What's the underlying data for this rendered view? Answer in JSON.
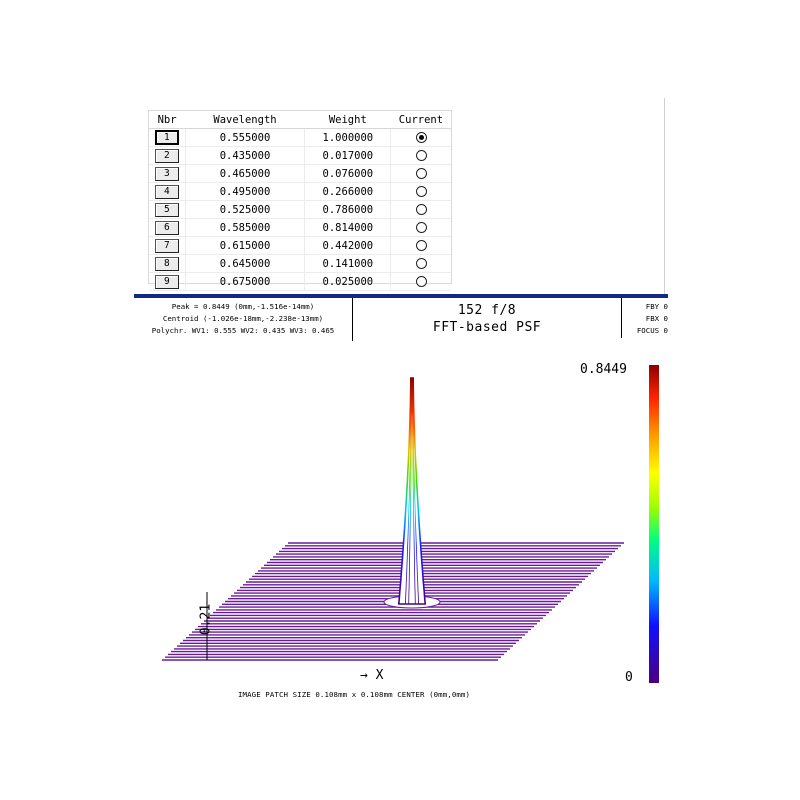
{
  "wavelength_table": {
    "headers": {
      "nbr": "Nbr",
      "wavelength": "Wavelength",
      "weight": "Weight",
      "current": "Current"
    },
    "rows": [
      {
        "nbr": "1",
        "wavelength": "0.555000",
        "weight": "1.000000",
        "current": true
      },
      {
        "nbr": "2",
        "wavelength": "0.435000",
        "weight": "0.017000",
        "current": false
      },
      {
        "nbr": "3",
        "wavelength": "0.465000",
        "weight": "0.076000",
        "current": false
      },
      {
        "nbr": "4",
        "wavelength": "0.495000",
        "weight": "0.266000",
        "current": false
      },
      {
        "nbr": "5",
        "wavelength": "0.525000",
        "weight": "0.786000",
        "current": false
      },
      {
        "nbr": "6",
        "wavelength": "0.585000",
        "weight": "0.814000",
        "current": false
      },
      {
        "nbr": "7",
        "wavelength": "0.615000",
        "weight": "0.442000",
        "current": false
      },
      {
        "nbr": "8",
        "wavelength": "0.645000",
        "weight": "0.141000",
        "current": false
      },
      {
        "nbr": "9",
        "wavelength": "0.675000",
        "weight": "0.025000",
        "current": false
      }
    ]
  },
  "plot_header": {
    "peak": "Peak = 0.8449 (0mm,-1.516e-14mm)",
    "centroid": "Centroid (-1.026e-18mm,-2.238e-13mm)",
    "polychr": "Polychr. WV1: 0.555 WV2: 0.435 WV3: 0.465",
    "title_line1": "152 f/8",
    "title_line2": "FFT-based PSF",
    "right_line1": "FBY 0",
    "right_line2": "FBX 0",
    "right_line3": "FOCUS 0"
  },
  "plot": {
    "colorbar_max": "0.8449",
    "colorbar_min": "0",
    "z_scale_label": "0.21",
    "x_axis_label": "→ X",
    "footer": "IMAGE PATCH SIZE 0.108mm x 0.108mm    CENTER (0mm,0mm)",
    "line_color": "#6a1b9a",
    "peak_value": 0.8449
  }
}
